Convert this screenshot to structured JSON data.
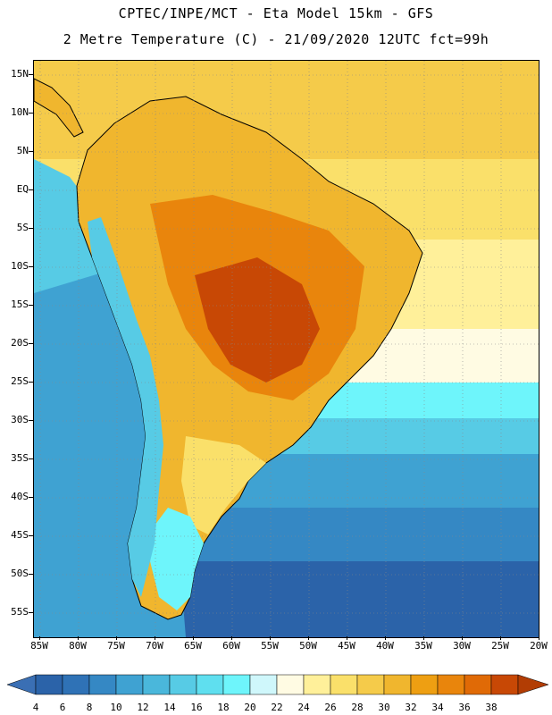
{
  "title": {
    "line1": "CPTEC/INPE/MCT -  Eta Model 15km - GFS",
    "line2": "2 Metre Temperature (C) - 21/09/2020 12UTC fct=99h"
  },
  "lat_labels": [
    "15N",
    "10N",
    "5N",
    "EQ",
    "5S",
    "10S",
    "15S",
    "20S",
    "25S",
    "30S",
    "35S",
    "40S",
    "45S",
    "50S",
    "55S"
  ],
  "lon_labels": [
    "85W",
    "80W",
    "75W",
    "70W",
    "65W",
    "60W",
    "55W",
    "50W",
    "45W",
    "40W",
    "35W",
    "30W",
    "25W",
    "20W"
  ],
  "legend": {
    "values": [
      "4",
      "6",
      "8",
      "10",
      "12",
      "14",
      "16",
      "18",
      "20",
      "22",
      "24",
      "26",
      "28",
      "30",
      "32",
      "34",
      "36",
      "38"
    ],
    "colors": [
      "#2b63a9",
      "#2f72b6",
      "#3588c4",
      "#3fa2d2",
      "#4ab7db",
      "#57cbe5",
      "#5fdfef",
      "#6ef5fb",
      "#cff7fb",
      "#fffbe3",
      "#fff09a",
      "#fae06a",
      "#f5cb4a",
      "#f0b62e",
      "#ee9f12",
      "#e9850c",
      "#e06a06",
      "#c84805"
    ],
    "low_arrow_color": "#3a6fb4",
    "high_arrow_color": "#b23d04"
  },
  "colors": {
    "deep_ocean": "#2b63a9",
    "mid_ocean": "#3fa2d2",
    "warm_ocean": "#57cbe5",
    "tropical_ocean": "#fae06a",
    "land_hot": "#e9850c",
    "land_very_hot": "#c84805",
    "land_warm": "#f0b62e",
    "andes_cold": "#5fdfef",
    "coastline": "#000000"
  }
}
